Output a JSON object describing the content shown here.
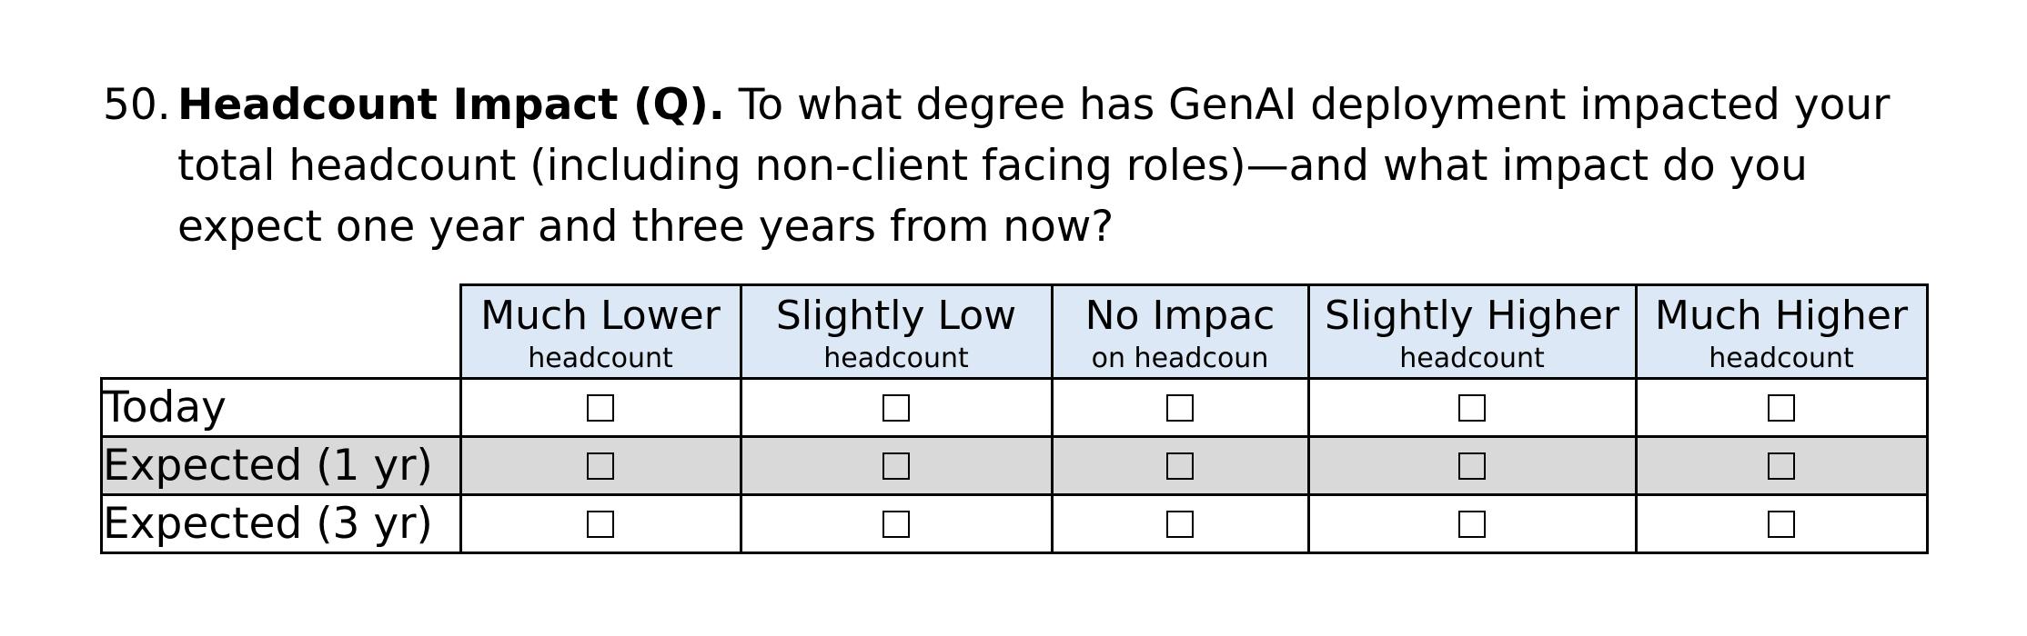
{
  "question": {
    "number": "50.",
    "title": "Headcount Impact (Q).",
    "text": " To what degree has GenAI deployment impacted your total headcount (including non-client facing roles)—and what impact do you expect one year and three years from now?"
  },
  "table": {
    "columns": [
      {
        "main": "Much Lower",
        "sub": "headcount"
      },
      {
        "main": "Slightly Low",
        "sub": "headcount"
      },
      {
        "main": "No Impac",
        "sub": "on headcoun"
      },
      {
        "main": "Slightly Higher",
        "sub": "headcount"
      },
      {
        "main": "Much Higher",
        "sub": "headcount"
      }
    ],
    "rows": [
      {
        "label": "Today",
        "shaded": false,
        "checked": [
          false,
          false,
          false,
          false,
          false
        ]
      },
      {
        "label": "Expected (1 yr)",
        "shaded": true,
        "checked": [
          false,
          false,
          false,
          false,
          false
        ]
      },
      {
        "label": "Expected (3 yr)",
        "shaded": false,
        "checked": [
          false,
          false,
          false,
          false,
          false
        ]
      }
    ]
  },
  "colors": {
    "header_background": "#dce8f6",
    "shaded_row": "#d9d9d9",
    "border": "#000000"
  }
}
